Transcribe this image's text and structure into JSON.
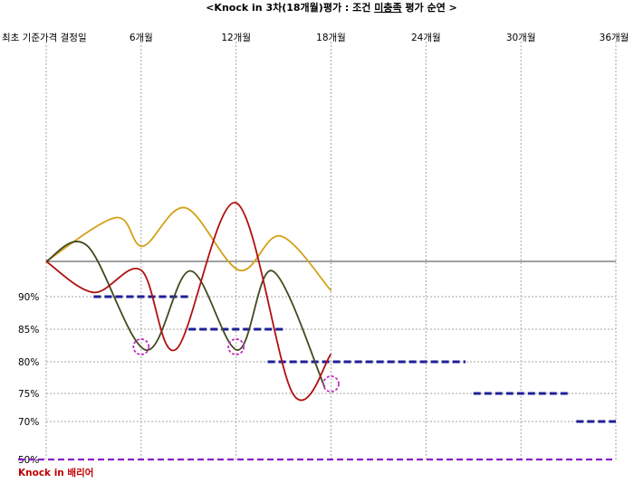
{
  "chart_data": {
    "type": "line",
    "title": {
      "pre": "<Knock in 3차(18개월)평가 : 조건 ",
      "underlined": "미충족",
      "post": " 평가 순연 >"
    },
    "periods": [
      "최초 기준가격 결정일",
      "6개월",
      "12개월",
      "18개월",
      "24개월",
      "30개월",
      "36개월"
    ],
    "period_months": [
      0,
      6,
      12,
      18,
      24,
      30,
      36
    ],
    "y_tick_labels": [
      "90%",
      "85%",
      "80%",
      "75%",
      "70%",
      "50%"
    ],
    "y_tick_values": [
      90,
      85,
      80,
      75,
      70,
      50
    ],
    "baseline_value": 100,
    "knock_in_label": "Knock in 배리어",
    "knock_in_value": 50,
    "colors": {
      "baseline": "#404040",
      "grid": "#a6a6a6",
      "barrier_steps": "#1f1f9a",
      "knock_in": "#8a1fc9",
      "evaluation_circles": "#c030c0"
    },
    "barrier_steps": [
      {
        "from_month": 3,
        "to_month": 9,
        "value": 90
      },
      {
        "from_month": 9,
        "to_month": 15,
        "value": 85
      },
      {
        "from_month": 14,
        "to_month": 26.5,
        "value": 80
      },
      {
        "from_month": 27,
        "to_month": 33,
        "value": 75
      },
      {
        "from_month": 33.5,
        "to_month": 36,
        "value": 70
      }
    ],
    "evaluation_points": [
      {
        "month": 6,
        "value": 82.3
      },
      {
        "month": 12,
        "value": 82.3
      },
      {
        "month": 18,
        "value": 76.5
      }
    ],
    "series": [
      {
        "color": "#d4a017",
        "points": [
          [
            0,
            100
          ],
          [
            4.4,
            112.4
          ],
          [
            6.1,
            104.3
          ],
          [
            8.8,
            115.2
          ],
          [
            12.2,
            97.5
          ],
          [
            14.8,
            107.2
          ],
          [
            18,
            91.7
          ]
        ]
      },
      {
        "color": "#3f4a1e",
        "points": [
          [
            0,
            100
          ],
          [
            2.6,
            104.4
          ],
          [
            6.3,
            81.8
          ],
          [
            9.1,
            97.3
          ],
          [
            12.1,
            81.8
          ],
          [
            14.3,
            97.3
          ],
          [
            17.6,
            76
          ]
        ]
      },
      {
        "color": "#b01010",
        "points": [
          [
            0,
            100
          ],
          [
            3,
            91.2
          ],
          [
            6,
            97.5
          ],
          [
            8.2,
            81.9
          ],
          [
            12,
            116.6
          ],
          [
            15.6,
            74.9
          ],
          [
            18,
            81.2
          ]
        ]
      }
    ]
  }
}
